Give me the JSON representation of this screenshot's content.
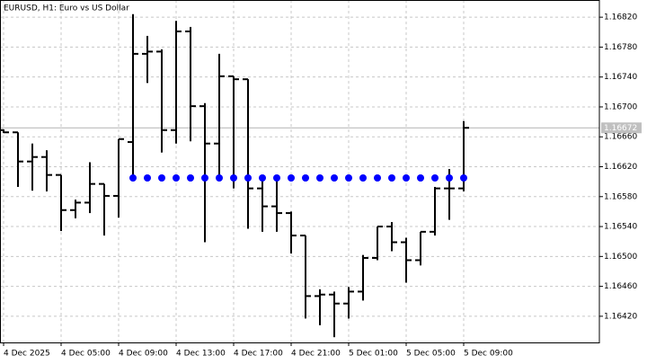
{
  "chart_data": {
    "type": "ohlc",
    "title": "EURUSD, H1:  Euro vs US Dollar",
    "categories": [
      "4 Dec 2025",
      null,
      null,
      null,
      "4 Dec 05:00",
      null,
      null,
      null,
      "4 Dec 09:00",
      null,
      null,
      null,
      "4 Dec 13:00",
      null,
      null,
      null,
      "4 Dec 17:00",
      null,
      null,
      null,
      "4 Dec 21:00",
      null,
      null,
      null,
      "5 Dec 01:00",
      null,
      null,
      null,
      "5 Dec 05:00",
      null,
      null,
      null,
      "5 Dec 09:00"
    ],
    "open": [
      1.16669,
      1.16666,
      1.16627,
      1.16633,
      1.16609,
      1.16562,
      1.16572,
      1.16597,
      1.16581,
      1.16653,
      1.16771,
      1.16774,
      1.16669,
      1.16801,
      1.16701,
      1.16651,
      1.16741,
      1.16737,
      1.16591,
      1.16567,
      1.16558,
      1.16528,
      1.16447,
      1.16449,
      1.16437,
      1.16453,
      1.16498,
      1.1654,
      1.16519,
      1.16495,
      1.16533,
      1.16591,
      1.16591
    ],
    "high": [
      1.1667,
      1.16666,
      1.16651,
      1.16642,
      1.16609,
      1.16576,
      1.16626,
      1.16597,
      1.16657,
      1.16824,
      1.16795,
      1.16777,
      1.16815,
      1.16807,
      1.16705,
      1.16771,
      1.16741,
      1.16737,
      1.16609,
      1.16609,
      1.1656,
      1.16528,
      1.16456,
      1.16453,
      1.16459,
      1.16502,
      1.1654,
      1.16546,
      1.16525,
      1.16533,
      1.16593,
      1.16617,
      1.16681
    ],
    "low": [
      1.16665,
      1.16593,
      1.16588,
      1.16587,
      1.16534,
      1.16551,
      1.16558,
      1.16528,
      1.16552,
      1.16603,
      1.16732,
      1.16639,
      1.16651,
      1.16654,
      1.16519,
      1.16609,
      1.16591,
      1.16537,
      1.16533,
      1.16533,
      1.16504,
      1.16417,
      1.16408,
      1.16392,
      1.16417,
      1.16441,
      1.16495,
      1.16507,
      1.16465,
      1.16488,
      1.16528,
      1.16549,
      1.16587
    ],
    "close": [
      1.16666,
      1.16627,
      1.16633,
      1.16609,
      1.16562,
      1.16572,
      1.16597,
      1.16581,
      1.16657,
      1.16771,
      1.16774,
      1.16669,
      1.16801,
      1.16701,
      1.16651,
      1.16741,
      1.16737,
      1.16591,
      1.16567,
      1.16558,
      1.16528,
      1.16447,
      1.16449,
      1.16437,
      1.16453,
      1.16498,
      1.1654,
      1.16519,
      1.16495,
      1.16533,
      1.16591,
      1.16591,
      1.16672
    ],
    "color": "#000000",
    "indicator": {
      "color": "#0000ff",
      "values": [
        null,
        null,
        null,
        null,
        null,
        null,
        null,
        null,
        null,
        1.16605,
        1.16605,
        1.16605,
        1.16605,
        1.16605,
        1.16605,
        1.16605,
        1.16605,
        1.16605,
        1.16605,
        1.16605,
        1.16605,
        1.16605,
        1.16605,
        1.16605,
        1.16605,
        1.16605,
        1.16605,
        1.16605,
        1.16605,
        1.16605,
        1.16605,
        1.16605,
        1.16605
      ]
    },
    "last_price": 1.16672,
    "ylim": [
      1.16385,
      1.16843
    ],
    "yticks": [
      {
        "value": 1.1642,
        "label": "1.16420"
      },
      {
        "value": 1.1646,
        "label": "1.16460"
      },
      {
        "value": 1.165,
        "label": "1.16500"
      },
      {
        "value": 1.1654,
        "label": "1.16540"
      },
      {
        "value": 1.1658,
        "label": "1.16580"
      },
      {
        "value": 1.1662,
        "label": "1.16620"
      },
      {
        "value": 1.1666,
        "label": "1.16660"
      },
      {
        "value": 1.167,
        "label": "1.16700"
      },
      {
        "value": 1.1674,
        "label": "1.16740"
      },
      {
        "value": 1.1678,
        "label": "1.16780"
      },
      {
        "value": 1.1682,
        "label": "1.16820"
      }
    ],
    "grid": true
  }
}
